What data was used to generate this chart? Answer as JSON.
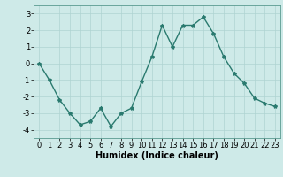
{
  "x": [
    0,
    1,
    2,
    3,
    4,
    5,
    6,
    7,
    8,
    9,
    10,
    11,
    12,
    13,
    14,
    15,
    16,
    17,
    18,
    19,
    20,
    21,
    22,
    23
  ],
  "y": [
    0,
    -1,
    -2.2,
    -3,
    -3.7,
    -3.5,
    -2.7,
    -3.8,
    -3,
    -2.7,
    -1.1,
    0.4,
    2.3,
    1.0,
    2.3,
    2.3,
    2.8,
    1.8,
    0.4,
    -0.6,
    -1.2,
    -2.1,
    -2.4,
    -2.6
  ],
  "line_color": "#2a7a6f",
  "marker": "*",
  "marker_size": 3,
  "bg_color": "#ceeae8",
  "grid_color": "#afd4d2",
  "xlabel": "Humidex (Indice chaleur)",
  "xlabel_fontsize": 7,
  "tick_fontsize": 6,
  "ylim": [
    -4.5,
    3.5
  ],
  "xlim": [
    -0.5,
    23.5
  ],
  "yticks": [
    -4,
    -3,
    -2,
    -1,
    0,
    1,
    2,
    3
  ],
  "xticks": [
    0,
    1,
    2,
    3,
    4,
    5,
    6,
    7,
    8,
    9,
    10,
    11,
    12,
    13,
    14,
    15,
    16,
    17,
    18,
    19,
    20,
    21,
    22,
    23
  ],
  "linewidth": 1.0
}
